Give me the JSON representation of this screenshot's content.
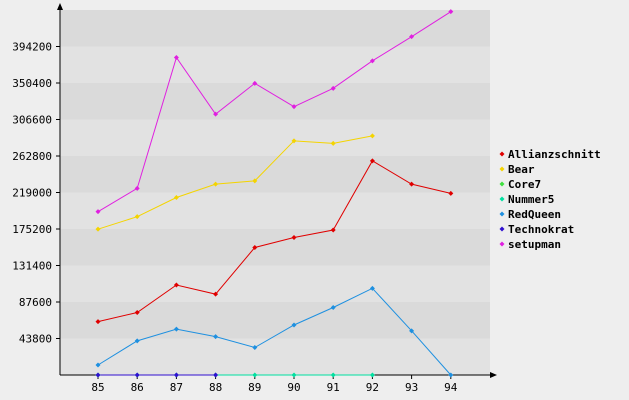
{
  "chart_data": {
    "type": "line",
    "title": "",
    "xlabel": "",
    "ylabel": "",
    "categories": [
      "85",
      "86",
      "87",
      "88",
      "89",
      "90",
      "91",
      "92",
      "93",
      "94"
    ],
    "y_ticks": [
      43800,
      87600,
      131400,
      175200,
      219000,
      262800,
      306600,
      350400,
      394200
    ],
    "y_tick_labels": [
      "43800",
      "87600",
      "131400",
      "175200",
      "219000",
      "262800",
      "306600",
      "350400",
      "394200"
    ],
    "ylim": [
      0,
      438000
    ],
    "grid": "horizontal bands",
    "legend_position": "right",
    "series": [
      {
        "name": "Allianzschnitt",
        "color": "#e00000",
        "values": [
          64000,
          75000,
          108000,
          97000,
          153000,
          165000,
          174000,
          257000,
          229000,
          218000
        ]
      },
      {
        "name": "Bear",
        "color": "#f4d400",
        "values": [
          175000,
          190000,
          213000,
          229000,
          233000,
          281000,
          278000,
          287000,
          null,
          null
        ]
      },
      {
        "name": "Core7",
        "color": "#40e040",
        "values": [
          null,
          null,
          null,
          null,
          null,
          null,
          null,
          null,
          null,
          null
        ]
      },
      {
        "name": "Nummer5",
        "color": "#00e0a0",
        "values": [
          0,
          0,
          0,
          0,
          0,
          0,
          0,
          0,
          null,
          null
        ]
      },
      {
        "name": "RedQueen",
        "color": "#1e90e0",
        "values": [
          12000,
          41000,
          55000,
          46000,
          33000,
          60000,
          81000,
          104000,
          53000,
          0
        ]
      },
      {
        "name": "Technokrat",
        "color": "#3010d0",
        "values": [
          0,
          0,
          0,
          0,
          null,
          null,
          null,
          null,
          null,
          null
        ]
      },
      {
        "name": "setupman",
        "color": "#e020e0",
        "values": [
          196000,
          224000,
          381000,
          313000,
          350000,
          322000,
          344000,
          377000,
          406000,
          436000
        ]
      }
    ]
  }
}
